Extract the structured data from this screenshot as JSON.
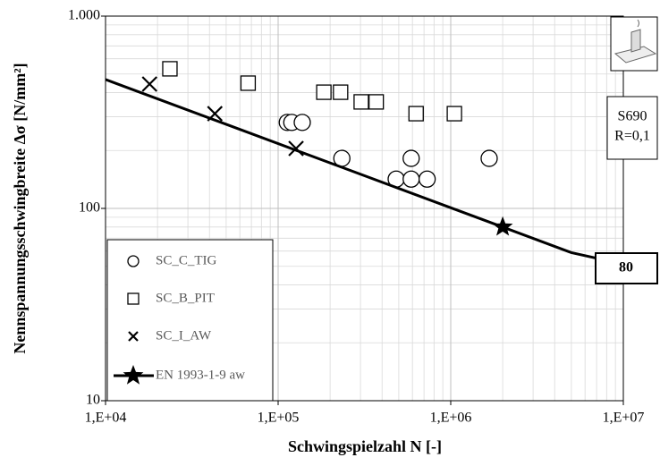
{
  "chart_data": {
    "type": "scatter",
    "xlabel": "Schwingspielzahl N [-]",
    "ylabel": "Nennspannungsschwingbreite Δσ [N/mm²]",
    "xscale": "log",
    "yscale": "log",
    "grid": true,
    "xlim": [
      10000,
      10000000
    ],
    "ylim": [
      10,
      1000
    ],
    "xticks": [
      {
        "value": 10000,
        "label": "1,E+04"
      },
      {
        "value": 100000,
        "label": "1,E+05"
      },
      {
        "value": 1000000,
        "label": "1,E+06"
      },
      {
        "value": 10000000,
        "label": "1,E+07"
      }
    ],
    "yticks": [
      10,
      100,
      {
        "value": 1000,
        "label": "1.000"
      }
    ],
    "legend_position": "lower left",
    "series": [
      {
        "name": "SC_C_TIG",
        "marker": "circle",
        "color": "#000000",
        "x": [
          113000,
          120000,
          138000,
          234000,
          483000,
          590000,
          590000,
          730000,
          1670000
        ],
        "values": [
          280,
          280,
          280,
          182,
          142,
          142,
          182,
          142,
          182
        ]
      },
      {
        "name": "SC_B_PIT",
        "marker": "square",
        "color": "#000000",
        "x": [
          23600,
          67000,
          184000,
          230000,
          303000,
          370000,
          630000,
          1050000
        ],
        "values": [
          532,
          448,
          402,
          402,
          358,
          358,
          311,
          311
        ]
      },
      {
        "name": "SC_I_AW",
        "marker": "x",
        "color": "#000000",
        "x": [
          18000,
          43000,
          127000
        ],
        "values": [
          443,
          311,
          205
        ]
      },
      {
        "name": "EN 1993-1-9 aw",
        "marker": "line",
        "color": "#000000",
        "x": [
          10000,
          2000000,
          5000000,
          10000000
        ],
        "values": [
          468,
          80,
          58.9,
          51.3
        ],
        "star_at": 1
      }
    ],
    "end_label": "80",
    "info_box": [
      "S690",
      "R=0,1"
    ]
  }
}
